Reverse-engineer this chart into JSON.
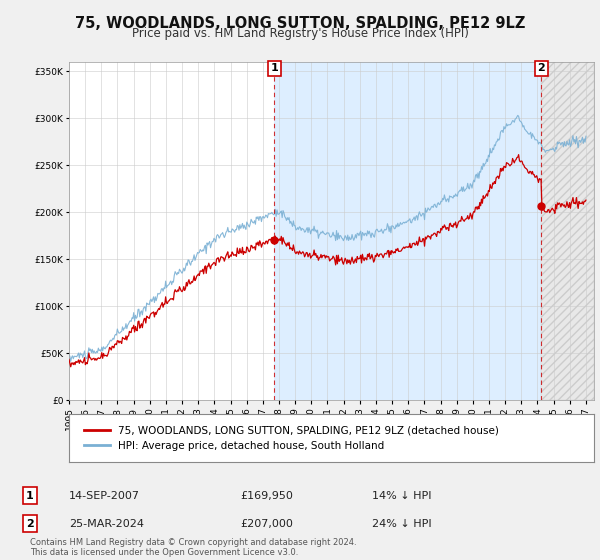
{
  "title": "75, WOODLANDS, LONG SUTTON, SPALDING, PE12 9LZ",
  "subtitle": "Price paid vs. HM Land Registry's House Price Index (HPI)",
  "sale1": {
    "date": "14-SEP-2007",
    "price": 169950,
    "label": "14% ↓ HPI",
    "num": "1",
    "year": 2007.71
  },
  "sale2": {
    "date": "25-MAR-2024",
    "price": 207000,
    "label": "24% ↓ HPI",
    "num": "2",
    "year": 2024.23
  },
  "legend1": "75, WOODLANDS, LONG SUTTON, SPALDING, PE12 9LZ (detached house)",
  "legend2": "HPI: Average price, detached house, South Holland",
  "footer": "Contains HM Land Registry data © Crown copyright and database right 2024.\nThis data is licensed under the Open Government Licence v3.0.",
  "red_color": "#cc0000",
  "blue_color": "#7ab0d4",
  "shade_color": "#ddeeff",
  "background_color": "#f0f0f0",
  "plot_bg": "#ffffff",
  "ylim": [
    0,
    360000
  ],
  "xlim_start": 1995.0,
  "xlim_end": 2027.5,
  "yticks": [
    0,
    50000,
    100000,
    150000,
    200000,
    250000,
    300000,
    350000
  ],
  "xticks": [
    1995,
    1996,
    1997,
    1998,
    1999,
    2000,
    2001,
    2002,
    2003,
    2004,
    2005,
    2006,
    2007,
    2008,
    2009,
    2010,
    2011,
    2012,
    2013,
    2014,
    2015,
    2016,
    2017,
    2018,
    2019,
    2020,
    2021,
    2022,
    2023,
    2024,
    2025,
    2026,
    2027
  ]
}
